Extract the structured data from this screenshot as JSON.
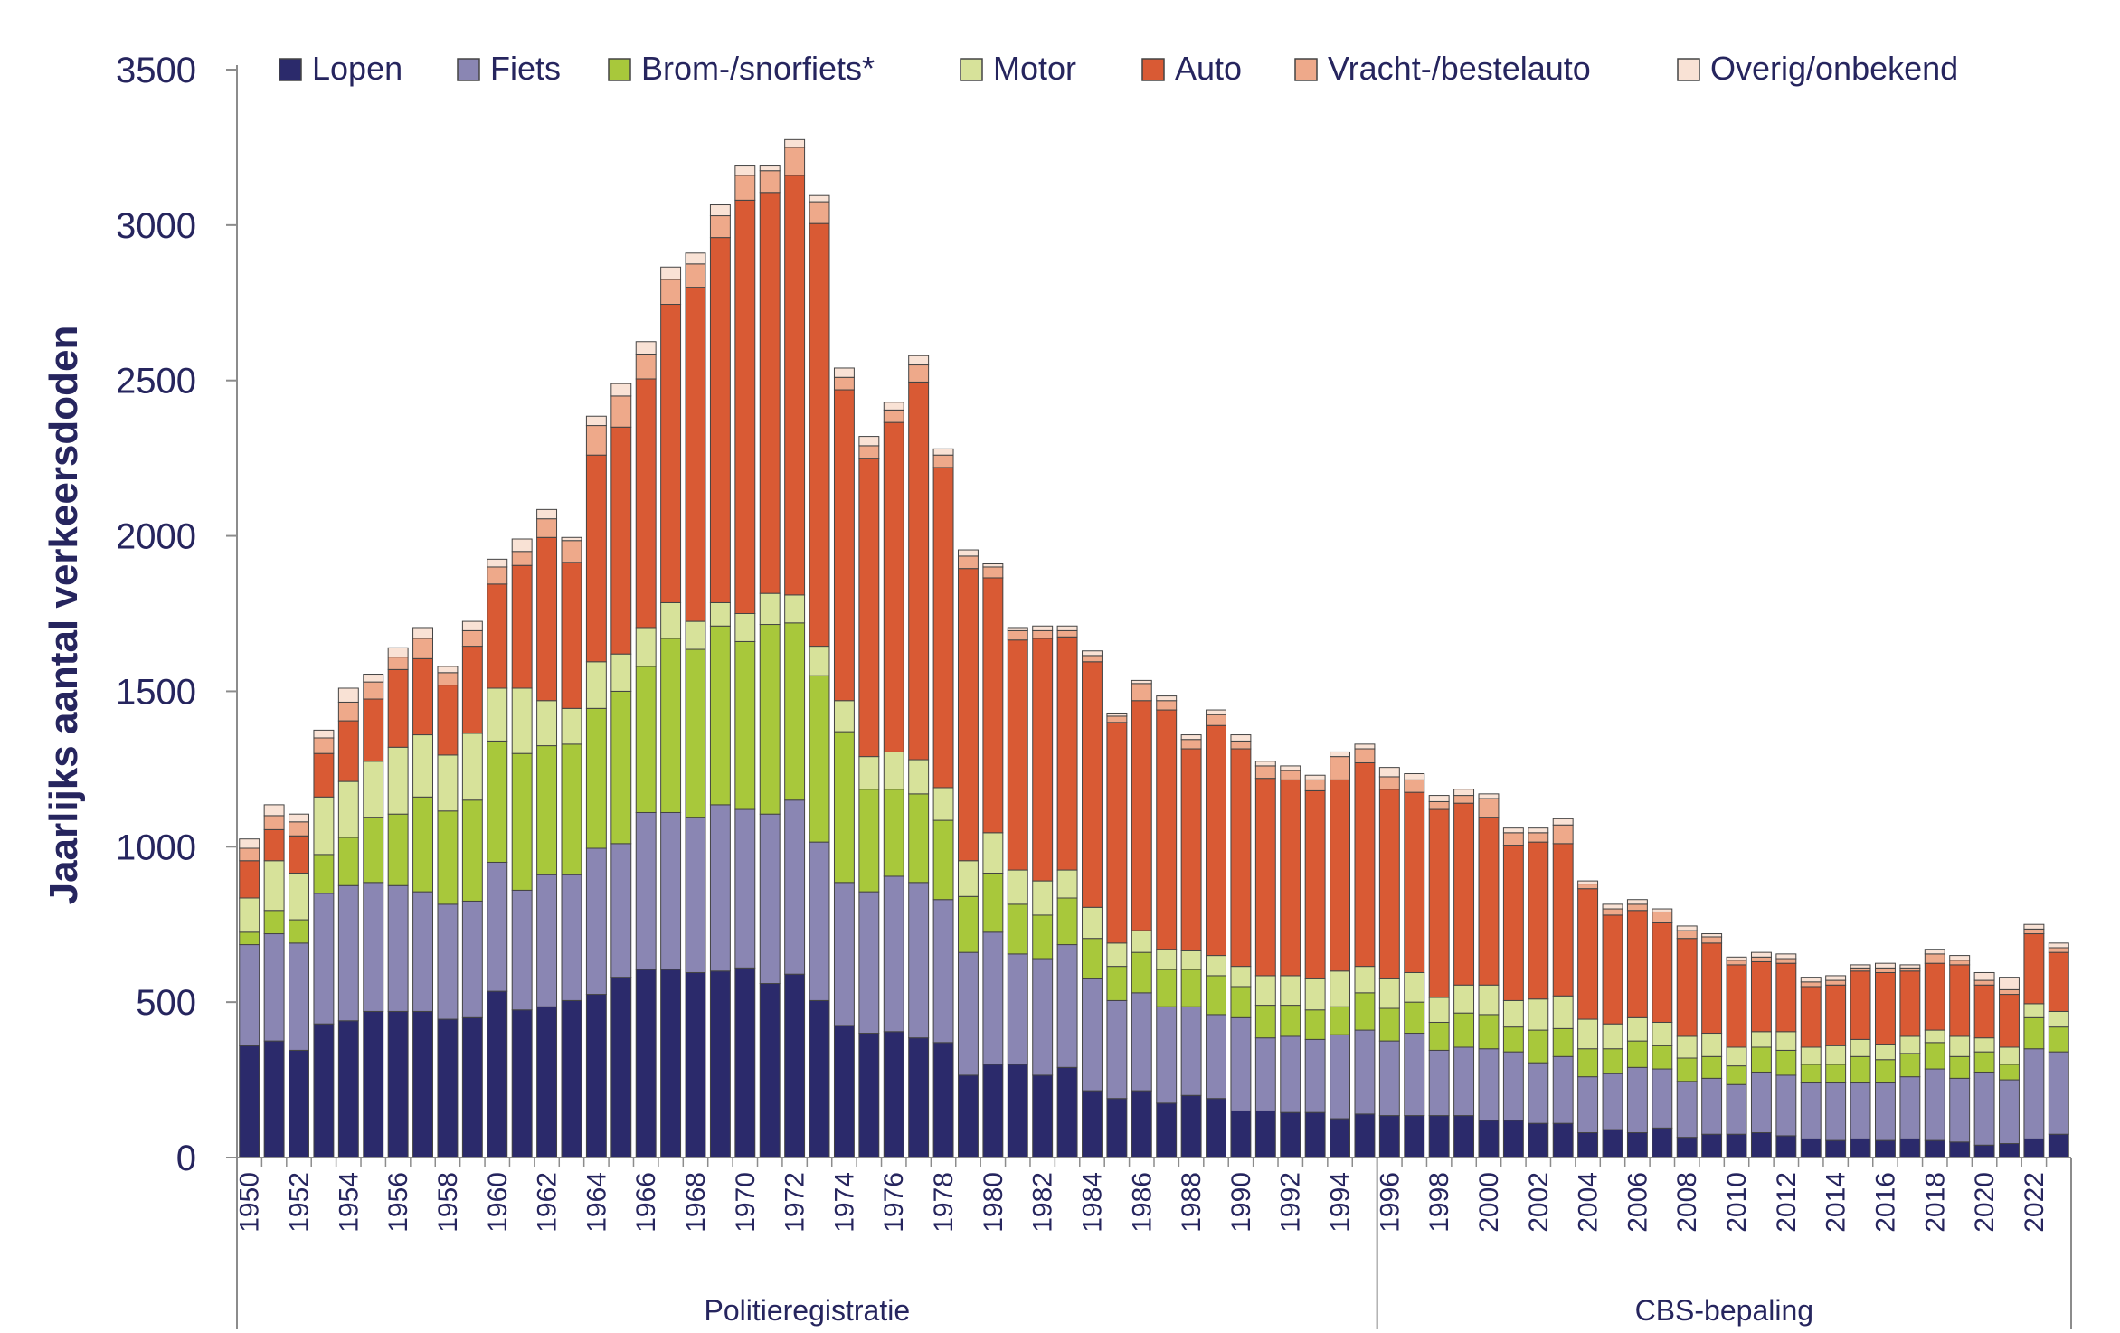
{
  "chart_data": {
    "type": "bar",
    "stacked": true,
    "ylabel": "Jaarlijks aantal verkeersdoden",
    "xlabel": "",
    "ylim": [
      0,
      3500
    ],
    "yticks": [
      0,
      500,
      1000,
      1500,
      2000,
      2500,
      3000,
      3500
    ],
    "legend_position": "top",
    "grid": false,
    "categories": [
      1950,
      1951,
      1952,
      1953,
      1954,
      1955,
      1956,
      1957,
      1958,
      1959,
      1960,
      1961,
      1962,
      1963,
      1964,
      1965,
      1966,
      1967,
      1968,
      1969,
      1970,
      1971,
      1972,
      1973,
      1974,
      1975,
      1976,
      1977,
      1978,
      1979,
      1980,
      1981,
      1982,
      1983,
      1984,
      1985,
      1986,
      1987,
      1988,
      1989,
      1990,
      1991,
      1992,
      1993,
      1994,
      1995,
      1996,
      1997,
      1998,
      1999,
      2000,
      2001,
      2002,
      2003,
      2004,
      2005,
      2006,
      2007,
      2008,
      2009,
      2010,
      2011,
      2012,
      2013,
      2014,
      2015,
      2016,
      2017,
      2018,
      2019,
      2020,
      2021,
      2022,
      2023
    ],
    "xtick_labels": [
      "1950",
      "1952",
      "1954",
      "1956",
      "1958",
      "1960",
      "1962",
      "1964",
      "1966",
      "1968",
      "1970",
      "1972",
      "1974",
      "1976",
      "1978",
      "1980",
      "1982",
      "1984",
      "1986",
      "1988",
      "1990",
      "1992",
      "1994",
      "1996",
      "1998",
      "2000",
      "2002",
      "2004",
      "2006",
      "2008",
      "2010",
      "2012",
      "2014",
      "2016",
      "2018",
      "2020",
      "2022"
    ],
    "groups": [
      {
        "label": "Politieregistratie",
        "from": 1950,
        "to": 1995
      },
      {
        "label": "CBS-bepaling",
        "from": 1996,
        "to": 2023
      }
    ],
    "series": [
      {
        "name": "Lopen",
        "color": "#2b2a6b",
        "values": [
          360,
          375,
          345,
          430,
          440,
          470,
          470,
          470,
          445,
          450,
          535,
          475,
          485,
          505,
          525,
          580,
          605,
          605,
          595,
          600,
          610,
          560,
          590,
          505,
          425,
          400,
          405,
          385,
          370,
          265,
          300,
          300,
          265,
          290,
          215,
          190,
          215,
          175,
          200,
          190,
          150,
          150,
          145,
          145,
          125,
          140,
          135,
          135,
          135,
          135,
          120,
          120,
          110,
          110,
          80,
          90,
          80,
          95,
          65,
          75,
          75,
          80,
          70,
          60,
          55,
          60,
          55,
          60,
          55,
          50,
          40,
          45,
          60,
          75
        ]
      },
      {
        "name": "Fiets",
        "color": "#8a86b3",
        "values": [
          325,
          345,
          345,
          420,
          435,
          415,
          405,
          385,
          370,
          375,
          415,
          385,
          425,
          405,
          470,
          430,
          505,
          505,
          500,
          535,
          510,
          545,
          560,
          510,
          460,
          455,
          500,
          500,
          460,
          395,
          425,
          355,
          375,
          395,
          360,
          315,
          315,
          310,
          285,
          270,
          300,
          235,
          245,
          235,
          270,
          270,
          240,
          265,
          210,
          220,
          230,
          220,
          195,
          215,
          180,
          180,
          210,
          190,
          180,
          180,
          160,
          195,
          195,
          180,
          185,
          180,
          185,
          200,
          230,
          205,
          235,
          205,
          290,
          265
        ]
      },
      {
        "name": "Brom-/snorfiets*",
        "color": "#a8c83b",
        "values": [
          40,
          75,
          75,
          125,
          155,
          210,
          230,
          305,
          300,
          325,
          390,
          440,
          415,
          420,
          450,
          490,
          470,
          560,
          540,
          575,
          540,
          610,
          570,
          535,
          485,
          330,
          280,
          285,
          255,
          180,
          190,
          160,
          140,
          150,
          130,
          110,
          130,
          120,
          120,
          125,
          100,
          105,
          100,
          95,
          90,
          120,
          105,
          100,
          90,
          110,
          110,
          80,
          105,
          90,
          90,
          80,
          85,
          75,
          75,
          70,
          60,
          80,
          80,
          60,
          60,
          85,
          75,
          75,
          85,
          70,
          65,
          50,
          100,
          80
        ]
      },
      {
        "name": "Motor",
        "color": "#d7e29a",
        "values": [
          110,
          160,
          150,
          185,
          180,
          180,
          215,
          200,
          180,
          215,
          170,
          210,
          145,
          115,
          150,
          120,
          125,
          115,
          90,
          75,
          90,
          100,
          90,
          95,
          100,
          105,
          120,
          110,
          105,
          115,
          130,
          110,
          110,
          90,
          100,
          75,
          70,
          65,
          60,
          65,
          65,
          95,
          95,
          100,
          115,
          85,
          95,
          95,
          80,
          90,
          95,
          85,
          100,
          105,
          95,
          80,
          75,
          75,
          70,
          75,
          60,
          50,
          60,
          55,
          60,
          55,
          50,
          55,
          40,
          65,
          45,
          55,
          45,
          50
        ]
      },
      {
        "name": "Auto",
        "color": "#d95a34",
        "values": [
          120,
          100,
          120,
          140,
          195,
          200,
          250,
          245,
          225,
          280,
          335,
          395,
          525,
          470,
          665,
          730,
          800,
          960,
          1075,
          1175,
          1330,
          1290,
          1350,
          1360,
          1000,
          960,
          1060,
          1215,
          1030,
          940,
          820,
          740,
          780,
          750,
          790,
          710,
          740,
          770,
          650,
          740,
          700,
          635,
          630,
          605,
          615,
          655,
          610,
          580,
          605,
          585,
          540,
          500,
          505,
          490,
          420,
          350,
          345,
          320,
          315,
          290,
          265,
          225,
          220,
          195,
          195,
          220,
          230,
          210,
          215,
          230,
          170,
          170,
          225,
          190
        ]
      },
      {
        "name": "Vracht-/bestelauto",
        "color": "#eea98a",
        "values": [
          40,
          45,
          45,
          50,
          60,
          55,
          40,
          65,
          40,
          50,
          55,
          45,
          60,
          70,
          95,
          100,
          80,
          80,
          75,
          70,
          80,
          70,
          90,
          70,
          40,
          40,
          40,
          55,
          40,
          40,
          35,
          30,
          25,
          20,
          20,
          20,
          55,
          30,
          30,
          35,
          25,
          40,
          30,
          35,
          75,
          45,
          40,
          40,
          25,
          25,
          60,
          40,
          30,
          60,
          15,
          20,
          20,
          35,
          25,
          20,
          15,
          15,
          15,
          15,
          15,
          10,
          15,
          10,
          30,
          15,
          15,
          15,
          15,
          15
        ]
      },
      {
        "name": "Overig/onbekend",
        "color": "#f9e2d5",
        "values": [
          30,
          35,
          25,
          25,
          45,
          25,
          30,
          35,
          20,
          30,
          25,
          40,
          30,
          10,
          30,
          40,
          40,
          40,
          35,
          35,
          30,
          15,
          25,
          20,
          30,
          30,
          25,
          30,
          20,
          20,
          10,
          10,
          15,
          15,
          15,
          10,
          10,
          15,
          15,
          15,
          20,
          15,
          15,
          15,
          15,
          15,
          30,
          20,
          20,
          20,
          15,
          15,
          15,
          20,
          10,
          15,
          15,
          10,
          15,
          10,
          10,
          15,
          15,
          15,
          15,
          10,
          15,
          10,
          15,
          15,
          25,
          40,
          15,
          15
        ]
      }
    ]
  }
}
